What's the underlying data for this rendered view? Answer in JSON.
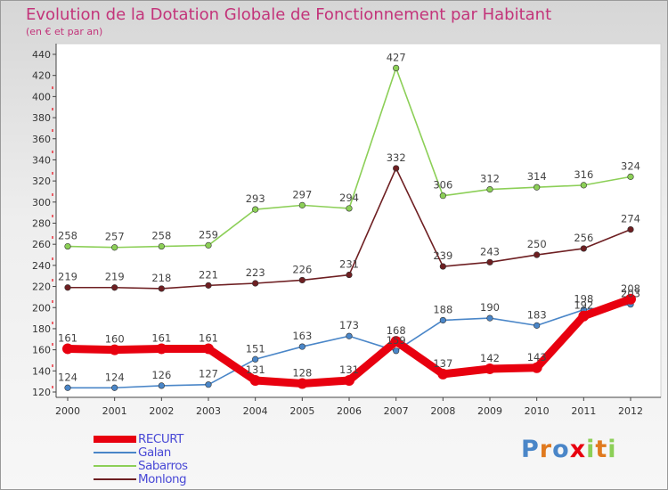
{
  "chart_data": {
    "type": "line",
    "title": "Evolution de la Dotation Globale de Fonctionnement par Habitant",
    "subtitle": "(en € et par an)",
    "x": [
      "2000",
      "2001",
      "2002",
      "2003",
      "2004",
      "2005",
      "2006",
      "2007",
      "2008",
      "2009",
      "2010",
      "2011",
      "2012"
    ],
    "ylim": [
      120,
      440
    ],
    "yticks": [
      120,
      140,
      160,
      180,
      200,
      220,
      240,
      260,
      280,
      300,
      320,
      340,
      360,
      380,
      400,
      420,
      440
    ],
    "grid": false,
    "legend_position": "bottom-left",
    "series": [
      {
        "name": "RECURT",
        "color": "#e8000f",
        "values": [
          161,
          160,
          161,
          161,
          131,
          128,
          131,
          168,
          137,
          142,
          143,
          192,
          208
        ]
      },
      {
        "name": "Galan",
        "color": "#4a86c8",
        "values": [
          124,
          124,
          126,
          127,
          151,
          163,
          173,
          159,
          188,
          190,
          183,
          198,
          203
        ]
      },
      {
        "name": "Sabarros",
        "color": "#8ccf57",
        "values": [
          258,
          257,
          258,
          259,
          293,
          297,
          294,
          427,
          306,
          312,
          314,
          316,
          324
        ]
      },
      {
        "name": "Monlong",
        "color": "#6e1f22",
        "values": [
          219,
          219,
          218,
          221,
          223,
          226,
          231,
          332,
          239,
          243,
          250,
          256,
          274
        ]
      }
    ]
  },
  "logo": {
    "letters": [
      {
        "char": "P",
        "color": "#4a86c8"
      },
      {
        "char": "r",
        "color": "#e07a1f"
      },
      {
        "char": "o",
        "color": "#4a86c8"
      },
      {
        "char": "x",
        "color": "#e8000f"
      },
      {
        "char": "i",
        "color": "#8ccf57"
      },
      {
        "char": "t",
        "color": "#e07a1f"
      },
      {
        "char": "i",
        "color": "#8ccf57"
      }
    ]
  }
}
